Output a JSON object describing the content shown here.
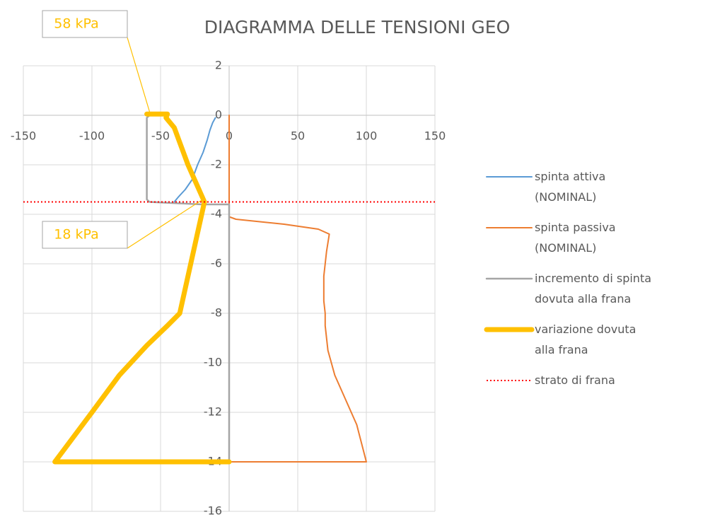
{
  "chart_data": {
    "type": "line",
    "title": "DIAGRAMMA DELLE TENSIONI GEO",
    "xlim": [
      -150,
      150
    ],
    "xticks": [
      -150,
      -100,
      -50,
      0,
      50,
      100,
      150
    ],
    "ylim": [
      -16,
      2
    ],
    "yticks": [
      2,
      0,
      -2,
      -4,
      -6,
      -8,
      -10,
      -12,
      -14,
      -16
    ],
    "grid": true,
    "legend": "right",
    "series": [
      {
        "name": "spinta attiva (NOMINAL)",
        "color": "#5b9bd5",
        "line_width": 2,
        "line_style": "solid",
        "x": [
          -10,
          -12,
          -14,
          -16,
          -19,
          -23,
          -27,
          -32,
          -37,
          -40
        ],
        "values": [
          -0.1,
          -0.3,
          -0.6,
          -1,
          -1.5,
          -2,
          -2.6,
          -3,
          -3.3,
          -3.5
        ]
      },
      {
        "name": "spinta passiva (NOMINAL)",
        "color": "#ed7d31",
        "line_width": 2,
        "line_style": "solid",
        "x": [
          0,
          0,
          5,
          40,
          65,
          73,
          71,
          69,
          69,
          70,
          70,
          72,
          77,
          85,
          93,
          100,
          0
        ],
        "values": [
          0,
          -4.1,
          -4.2,
          -4.4,
          -4.6,
          -4.8,
          -5.5,
          -6.5,
          -7.5,
          -8,
          -8.5,
          -9.5,
          -10.5,
          -11.5,
          -12.5,
          -14,
          -14
        ]
      },
      {
        "name": "incremento di spinta dovuta alla frana",
        "color": "#a5a5a5",
        "line_width": 2.5,
        "line_style": "solid",
        "x": [
          -58,
          -60,
          -60,
          -58,
          -20,
          0,
          0,
          0
        ],
        "values": [
          0,
          -0.1,
          -3.4,
          -3.5,
          -3.6,
          -3.6,
          -3.7,
          -14
        ]
      },
      {
        "name": "variazione dovuta alla frana",
        "color": "#ffc000",
        "line_width": 7,
        "line_style": "solid",
        "x": [
          -60,
          -45,
          -46,
          -40,
          -30,
          -18,
          -20,
          -28,
          -36,
          -45,
          -60,
          -80,
          -100,
          -127,
          0
        ],
        "values": [
          0.05,
          0.05,
          -0.1,
          -0.5,
          -2,
          -3.5,
          -4,
          -6,
          -8,
          -8.5,
          -9.3,
          -10.5,
          -12,
          -14,
          -14
        ]
      },
      {
        "name": "strato di frana",
        "color": "#ff0000",
        "line_width": 2,
        "line_style": "dotted",
        "x": [
          -150,
          150
        ],
        "values": [
          -3.5,
          -3.5
        ]
      }
    ],
    "annotations": [
      {
        "text": "58 kPa",
        "x": -58,
        "y": 0
      },
      {
        "text": "18 kPa",
        "x": -18,
        "y": -3.5
      }
    ]
  }
}
